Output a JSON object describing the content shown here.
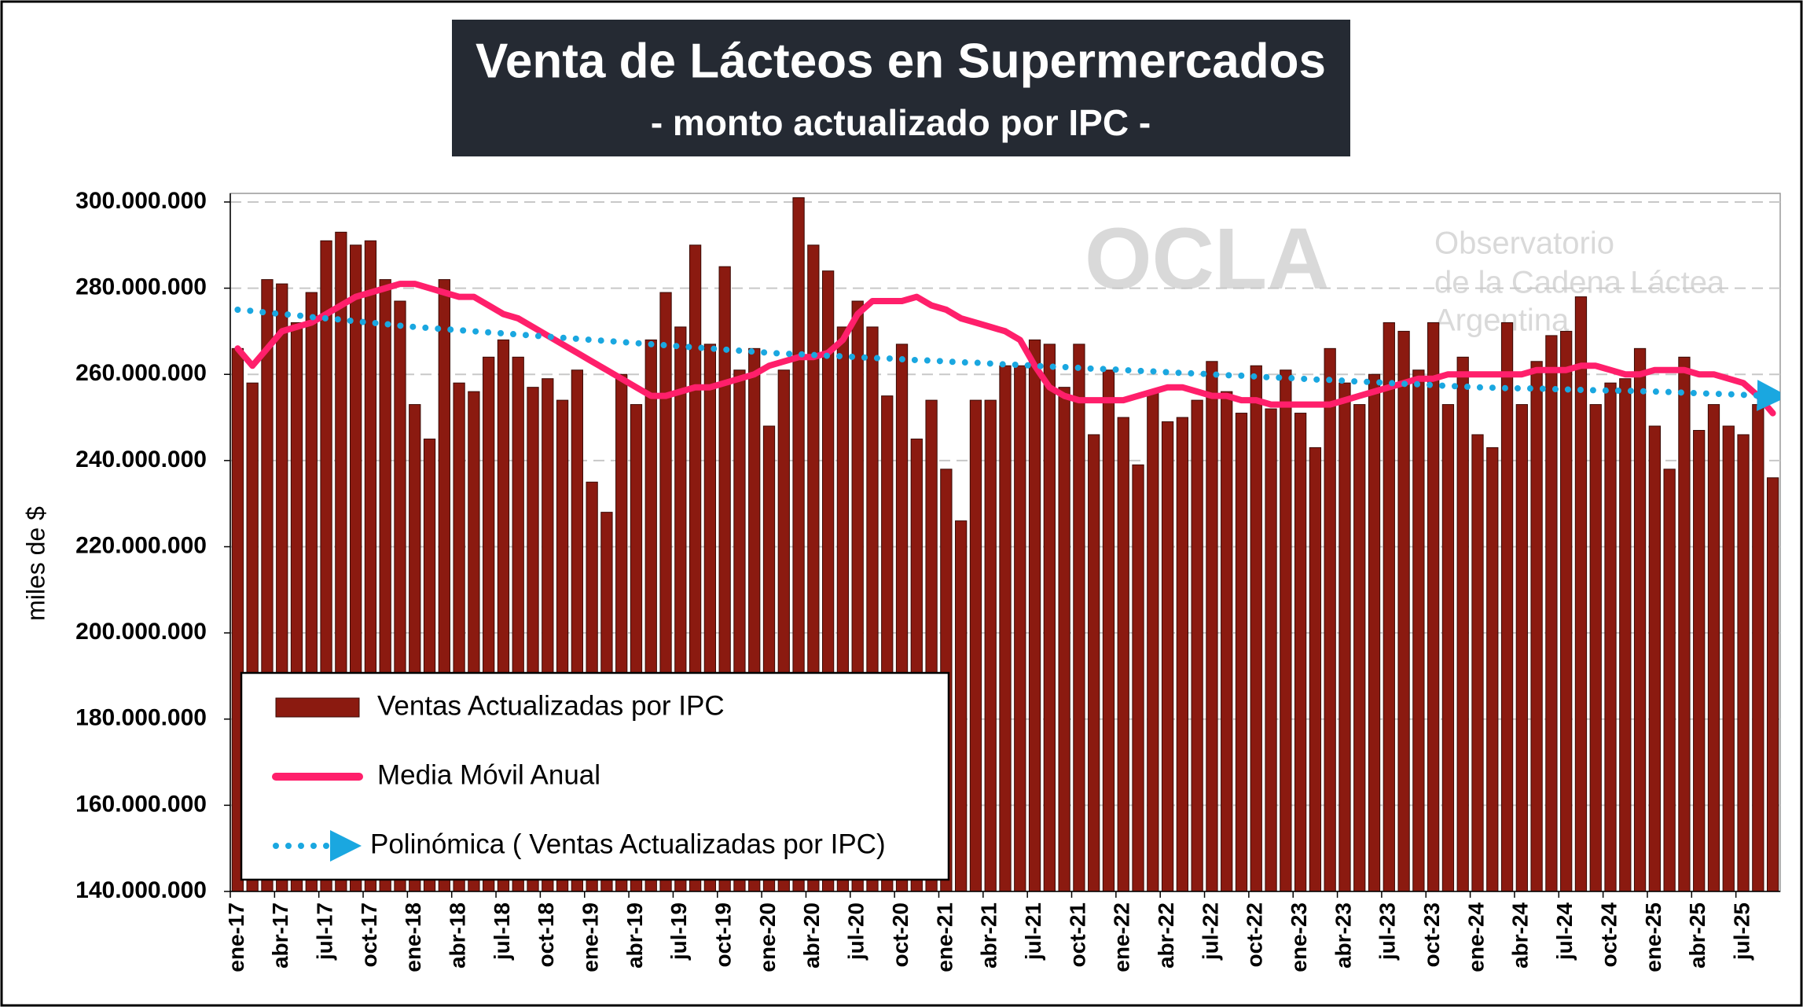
{
  "chart_data": {
    "type": "bar",
    "title": "Venta de Lácteos en Supermercados",
    "subtitle": "- monto actualizado por IPC -",
    "y_label": "miles de $",
    "watermark": {
      "logo": "OCLA",
      "line1": "Observatorio",
      "line2": "de la Cadena Láctea",
      "line3": "Argentina"
    },
    "legend": "lower left",
    "grid": true,
    "ylim": [
      140000000,
      302000000
    ],
    "yticks": [
      {
        "value": 140000000,
        "label": "140.000.000"
      },
      {
        "value": 160000000,
        "label": "160.000.000"
      },
      {
        "value": 180000000,
        "label": "180.000.000"
      },
      {
        "value": 200000000,
        "label": "200.000.000"
      },
      {
        "value": 220000000,
        "label": "220.000.000"
      },
      {
        "value": 240000000,
        "label": "240.000.000"
      },
      {
        "value": 260000000,
        "label": "260.000.000"
      },
      {
        "value": 280000000,
        "label": "280.000.000"
      },
      {
        "value": 300000000,
        "label": "300.000.000"
      }
    ],
    "categories": [
      "ene-17",
      null,
      null,
      "abr-17",
      null,
      null,
      "jul-17",
      null,
      null,
      "oct-17",
      null,
      null,
      "ene-18",
      null,
      null,
      "abr-18",
      null,
      null,
      "jul-18",
      null,
      null,
      "oct-18",
      null,
      null,
      "ene-19",
      null,
      null,
      "abr-19",
      null,
      null,
      "jul-19",
      null,
      null,
      "oct-19",
      null,
      null,
      "ene-20",
      null,
      null,
      "abr-20",
      null,
      null,
      "jul-20",
      null,
      null,
      "oct-20",
      null,
      null,
      "ene-21",
      null,
      null,
      "abr-21",
      null,
      null,
      "jul-21",
      null,
      null,
      "oct-21",
      null,
      null,
      "ene-22",
      null,
      null,
      "abr-22",
      null,
      null,
      "jul-22",
      null,
      null,
      "oct-22",
      null,
      null,
      "ene-23",
      null,
      null,
      "abr-23",
      null,
      null,
      "jul-23",
      null,
      null,
      "oct-23",
      null,
      null,
      "ene-24",
      null,
      null,
      "abr-24",
      null,
      null,
      "jul-24",
      null,
      null,
      "oct-24",
      null,
      null,
      "ene-25",
      null,
      null,
      "abr-25",
      null,
      null,
      "jul-25",
      null,
      null
    ],
    "series": [
      {
        "name": "Ventas Actualizadas por IPC",
        "type": "bar",
        "color": "#8b1a10",
        "values": [
          266000000,
          258000000,
          282000000,
          281000000,
          272000000,
          279000000,
          291000000,
          293000000,
          290000000,
          291000000,
          282000000,
          277000000,
          253000000,
          245000000,
          282000000,
          258000000,
          256000000,
          264000000,
          268000000,
          264000000,
          257000000,
          259000000,
          254000000,
          261000000,
          235000000,
          228000000,
          260000000,
          253000000,
          268000000,
          279000000,
          271000000,
          290000000,
          267000000,
          285000000,
          261000000,
          266000000,
          248000000,
          261000000,
          301000000,
          290000000,
          284000000,
          271000000,
          277000000,
          271000000,
          255000000,
          267000000,
          245000000,
          254000000,
          238000000,
          226000000,
          254000000,
          254000000,
          262000000,
          262000000,
          268000000,
          267000000,
          257000000,
          267000000,
          246000000,
          261000000,
          250000000,
          239000000,
          256000000,
          249000000,
          250000000,
          254000000,
          263000000,
          256000000,
          251000000,
          262000000,
          252000000,
          261000000,
          251000000,
          243000000,
          266000000,
          258000000,
          253000000,
          260000000,
          272000000,
          270000000,
          261000000,
          272000000,
          253000000,
          264000000,
          246000000,
          243000000,
          272000000,
          253000000,
          263000000,
          269000000,
          270000000,
          278000000,
          253000000,
          258000000,
          259000000,
          266000000,
          248000000,
          238000000,
          264000000,
          247000000,
          253000000,
          248000000,
          246000000,
          253000000,
          236000000
        ]
      },
      {
        "name": "Media Móvil Anual",
        "type": "line",
        "line_style": "solid",
        "color": "#ff1f6b",
        "values": [
          266000000,
          262000000,
          266000000,
          270000000,
          271000000,
          272000000,
          274000000,
          276000000,
          278000000,
          279000000,
          280000000,
          281000000,
          281000000,
          280000000,
          279000000,
          278000000,
          278000000,
          276000000,
          274000000,
          273000000,
          271000000,
          269000000,
          267000000,
          265000000,
          263000000,
          261000000,
          259000000,
          257000000,
          255000000,
          255000000,
          256000000,
          257000000,
          257000000,
          258000000,
          259000000,
          260000000,
          262000000,
          263000000,
          264000000,
          264000000,
          265000000,
          268000000,
          274000000,
          277000000,
          277000000,
          277000000,
          278000000,
          276000000,
          275000000,
          273000000,
          272000000,
          271000000,
          270000000,
          268000000,
          262000000,
          257000000,
          255000000,
          254000000,
          254000000,
          254000000,
          254000000,
          255000000,
          256000000,
          257000000,
          257000000,
          256000000,
          255000000,
          255000000,
          254000000,
          254000000,
          253000000,
          253000000,
          253000000,
          253000000,
          253000000,
          254000000,
          255000000,
          256000000,
          257000000,
          258000000,
          259000000,
          259000000,
          260000000,
          260000000,
          260000000,
          260000000,
          260000000,
          260000000,
          261000000,
          261000000,
          261000000,
          262000000,
          262000000,
          261000000,
          260000000,
          260000000,
          261000000,
          261000000,
          261000000,
          260000000,
          260000000,
          259000000,
          258000000,
          255000000,
          251000000
        ]
      },
      {
        "name": "Polinómica ( Ventas Actualizadas por IPC)",
        "type": "line",
        "line_style": "dotted",
        "color": "#1aa7e0",
        "values": [
          275000000,
          274700000,
          274300000,
          274000000,
          273700000,
          273300000,
          273000000,
          272700000,
          272300000,
          272000000,
          271700000,
          271300000,
          271000000,
          270750000,
          270500000,
          270250000,
          270000000,
          269750000,
          269500000,
          269250000,
          269000000,
          268750000,
          268500000,
          268250000,
          268000000,
          267750000,
          267500000,
          267250000,
          267000000,
          266750000,
          266500000,
          266250000,
          266000000,
          265750000,
          265500000,
          265250000,
          265000000,
          264800000,
          264700000,
          264500000,
          264300000,
          264200000,
          264000000,
          263800000,
          263700000,
          263500000,
          263300000,
          263200000,
          263000000,
          262800000,
          262700000,
          262500000,
          262300000,
          262200000,
          262000000,
          261800000,
          261700000,
          261500000,
          261300000,
          261200000,
          261000000,
          260800000,
          260700000,
          260500000,
          260300000,
          260200000,
          260000000,
          259800000,
          259700000,
          259500000,
          259300000,
          259200000,
          259000000,
          258800000,
          258700000,
          258500000,
          258300000,
          258200000,
          258000000,
          257800000,
          257700000,
          257500000,
          257300000,
          257200000,
          257000000,
          256900000,
          256800000,
          256750000,
          256700000,
          256600000,
          256500000,
          256400000,
          256300000,
          256250000,
          256200000,
          256100000,
          256000000,
          255900000,
          255750000,
          255600000,
          255500000,
          255400000,
          255250000,
          255100000,
          255000000
        ]
      }
    ]
  }
}
